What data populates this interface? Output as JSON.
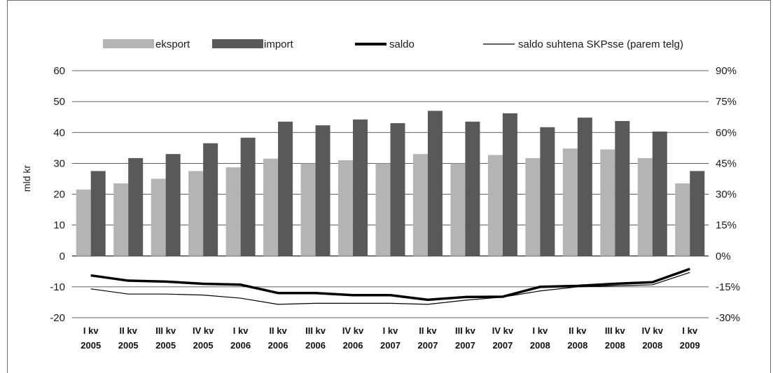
{
  "chart_data": {
    "type": "bar",
    "categories": [
      [
        "I kv",
        "2005"
      ],
      [
        "II kv",
        "2005"
      ],
      [
        "III kv",
        "2005"
      ],
      [
        "IV kv",
        "2005"
      ],
      [
        "I kv",
        "2006"
      ],
      [
        "II kv",
        "2006"
      ],
      [
        "III kv",
        "2006"
      ],
      [
        "IV kv",
        "2006"
      ],
      [
        "I kv",
        "2007"
      ],
      [
        "II kv",
        "2007"
      ],
      [
        "III kv",
        "2007"
      ],
      [
        "IV kv",
        "2007"
      ],
      [
        "I kv",
        "2008"
      ],
      [
        "II kv",
        "2008"
      ],
      [
        "III kv",
        "2008"
      ],
      [
        "IV kv",
        "2008"
      ],
      [
        "I kv",
        "2009"
      ]
    ],
    "series": [
      {
        "name": "eksport",
        "type": "bar",
        "axis": "left",
        "color": "#b4b4b4",
        "values": [
          21.5,
          23.5,
          25,
          27.5,
          28.7,
          31.5,
          30,
          31,
          30,
          33,
          30,
          32.7,
          31.7,
          34.8,
          34.5,
          31.7,
          23.5
        ]
      },
      {
        "name": "import",
        "type": "bar",
        "axis": "left",
        "color": "#595959",
        "values": [
          27.5,
          31.7,
          33,
          36.5,
          38.3,
          43.5,
          42.3,
          44.2,
          43,
          47,
          43.5,
          46.2,
          41.7,
          44.8,
          43.7,
          40.3,
          27.5
        ]
      },
      {
        "name": "saldo",
        "type": "line",
        "axis": "left",
        "color": "#000000",
        "width": "thick",
        "values": [
          -6.3,
          -8,
          -8.3,
          -9,
          -9.3,
          -12,
          -12,
          -12.7,
          -12.7,
          -14.2,
          -13.3,
          -13.2,
          -10,
          -9.7,
          -9,
          -8.5,
          -4.2
        ]
      },
      {
        "name": "saldo suhtena SKPsse (parem telg)",
        "type": "line",
        "axis": "right",
        "color": "#000000",
        "width": "thin",
        "values": [
          -16,
          -18.5,
          -18.5,
          -19,
          -20.5,
          -23.5,
          -23,
          -23,
          -23,
          -23.5,
          -21.5,
          -20,
          -17,
          -15,
          -14.5,
          -14,
          -8
        ]
      }
    ],
    "ylabel": "mld kr",
    "ylim": [
      -20,
      60
    ],
    "yticks": [
      60,
      50,
      40,
      30,
      20,
      10,
      0,
      -10,
      -20
    ],
    "y2lim": [
      -30,
      90
    ],
    "y2ticks": [
      "90%",
      "75%",
      "60%",
      "45%",
      "30%",
      "15%",
      "0%",
      "-15%",
      "-30%"
    ],
    "grid": true,
    "legend_position": "top"
  }
}
